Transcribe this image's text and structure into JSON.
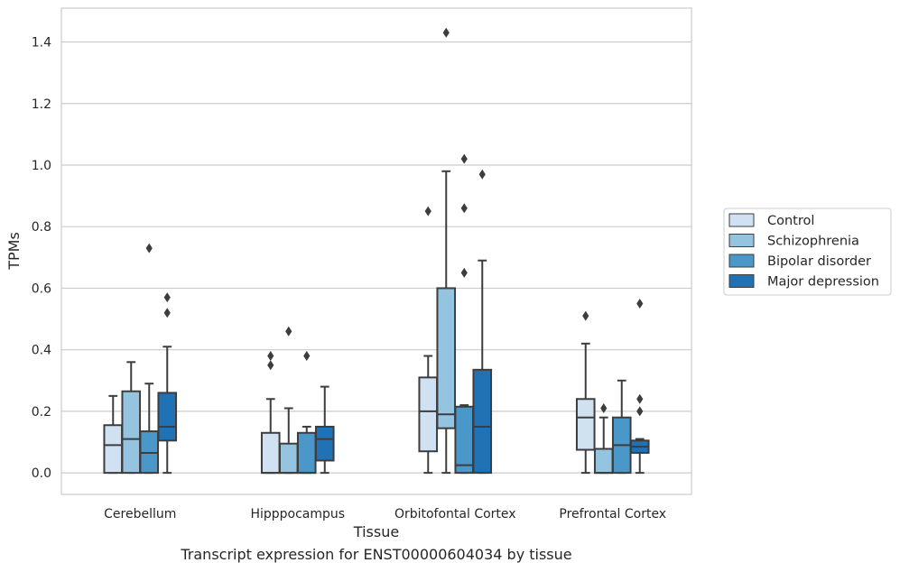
{
  "caption": "Transcript expression for ENST00000604034 by tissue",
  "chart_data": {
    "type": "boxplot",
    "xlabel": "Tissue",
    "ylabel": "TPMs",
    "ylim": [
      -0.07,
      1.51
    ],
    "yticks": [
      0.0,
      0.2,
      0.4,
      0.6,
      0.8,
      1.0,
      1.2,
      1.4
    ],
    "ytick_labels": [
      "0.0",
      "0.2",
      "0.4",
      "0.6",
      "0.8",
      "1.0",
      "1.2",
      "1.4"
    ],
    "grid": "horizontal",
    "legend_position": "right, outside",
    "categories": [
      "Cerebellum",
      "Hipppocampus",
      "Orbitofontal Cortex",
      "Prefrontal Cortex"
    ],
    "series": [
      {
        "name": "Control",
        "color": "#d0e1f2",
        "boxes": [
          {
            "whislo": 0.0,
            "q1": 0.0,
            "med": 0.09,
            "q3": 0.155,
            "whishi": 0.25,
            "fliers": []
          },
          {
            "whislo": 0.0,
            "q1": 0.0,
            "med": 0.0,
            "q3": 0.13,
            "whishi": 0.24,
            "fliers": [
              0.35,
              0.38
            ]
          },
          {
            "whislo": 0.0,
            "q1": 0.07,
            "med": 0.2,
            "q3": 0.31,
            "whishi": 0.38,
            "fliers": [
              0.85
            ]
          },
          {
            "whislo": 0.0,
            "q1": 0.075,
            "med": 0.18,
            "q3": 0.24,
            "whishi": 0.42,
            "fliers": [
              0.51
            ]
          }
        ]
      },
      {
        "name": "Schizophrenia",
        "color": "#94c4df",
        "boxes": [
          {
            "whislo": 0.0,
            "q1": 0.0,
            "med": 0.11,
            "q3": 0.265,
            "whishi": 0.36,
            "fliers": []
          },
          {
            "whislo": 0.0,
            "q1": 0.0,
            "med": 0.0,
            "q3": 0.095,
            "whishi": 0.21,
            "fliers": [
              0.46
            ]
          },
          {
            "whislo": 0.0,
            "q1": 0.145,
            "med": 0.19,
            "q3": 0.6,
            "whishi": 0.98,
            "fliers": [
              1.43
            ]
          },
          {
            "whislo": 0.0,
            "q1": 0.0,
            "med": 0.0,
            "q3": 0.078,
            "whishi": 0.18,
            "fliers": [
              0.21
            ]
          }
        ]
      },
      {
        "name": "Bipolar disorder",
        "color": "#4a98c9",
        "boxes": [
          {
            "whislo": 0.0,
            "q1": 0.0,
            "med": 0.065,
            "q3": 0.135,
            "whishi": 0.29,
            "fliers": [
              0.73
            ]
          },
          {
            "whislo": 0.0,
            "q1": 0.0,
            "med": 0.0,
            "q3": 0.13,
            "whishi": 0.15,
            "fliers": [
              0.38
            ]
          },
          {
            "whislo": 0.0,
            "q1": 0.0,
            "med": 0.025,
            "q3": 0.215,
            "whishi": 0.22,
            "fliers": [
              0.65,
              0.86,
              1.02
            ]
          },
          {
            "whislo": 0.0,
            "q1": 0.0,
            "med": 0.09,
            "q3": 0.18,
            "whishi": 0.3,
            "fliers": []
          }
        ]
      },
      {
        "name": "Major depression",
        "color": "#2171b5",
        "boxes": [
          {
            "whislo": 0.0,
            "q1": 0.105,
            "med": 0.15,
            "q3": 0.26,
            "whishi": 0.41,
            "fliers": [
              0.52,
              0.57
            ]
          },
          {
            "whislo": 0.0,
            "q1": 0.04,
            "med": 0.11,
            "q3": 0.15,
            "whishi": 0.28,
            "fliers": []
          },
          {
            "whislo": 0.0,
            "q1": 0.0,
            "med": 0.15,
            "q3": 0.335,
            "whishi": 0.69,
            "fliers": [
              0.97
            ]
          },
          {
            "whislo": 0.0,
            "q1": 0.065,
            "med": 0.085,
            "q3": 0.105,
            "whishi": 0.11,
            "fliers": [
              0.2,
              0.24,
              0.55
            ]
          }
        ]
      }
    ]
  }
}
